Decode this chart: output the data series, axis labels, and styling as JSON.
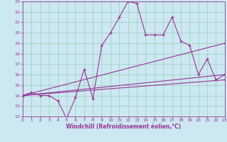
{
  "xlabel": "Windchill (Refroidissement éolien,°C)",
  "bg_color": "#cce8f0",
  "grid_color": "#99ccbb",
  "line_color": "#993399",
  "xmin": 0,
  "xmax": 23,
  "ymin": 12,
  "ymax": 23,
  "series1_x": [
    0,
    1,
    2,
    3,
    4,
    5,
    6,
    7,
    8,
    9,
    10,
    11,
    12,
    13,
    14,
    15,
    16,
    17,
    18,
    19,
    20,
    21,
    22,
    23
  ],
  "series1_y": [
    14.0,
    14.3,
    14.0,
    14.0,
    13.5,
    11.8,
    13.8,
    16.5,
    13.7,
    18.8,
    20.0,
    21.5,
    23.0,
    22.8,
    19.8,
    19.8,
    19.8,
    21.5,
    19.2,
    18.8,
    16.0,
    17.5,
    15.5,
    16.0
  ],
  "series2_x": [
    0,
    23
  ],
  "series2_y": [
    14.0,
    19.0
  ],
  "series3_x": [
    0,
    23
  ],
  "series3_y": [
    14.0,
    16.0
  ],
  "series4_x": [
    0,
    23
  ],
  "series4_y": [
    14.0,
    15.5
  ]
}
